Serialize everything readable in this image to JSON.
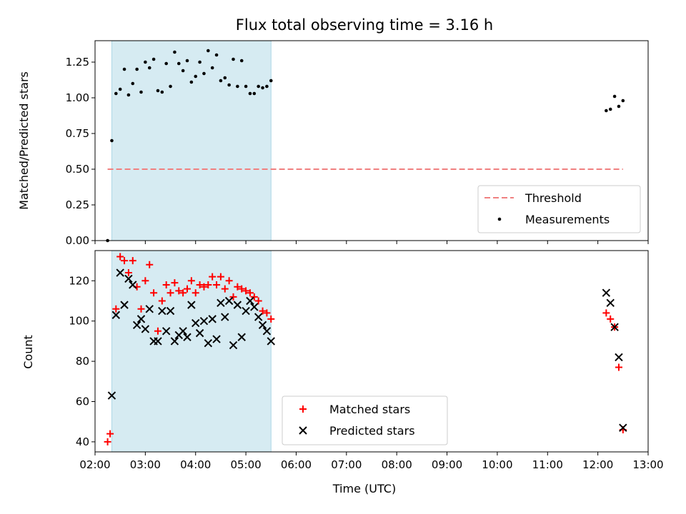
{
  "chart_data": [
    {
      "type": "scatter",
      "title": "Flux total observing time = 3.16 h",
      "xlabel": "",
      "ylabel": "Matched/Predicted stars",
      "ylim": [
        0,
        1.4
      ],
      "xlim": [
        "02:00",
        "13:00"
      ],
      "yticks": [
        "0.00",
        "0.25",
        "0.50",
        "0.75",
        "1.00",
        "1.25"
      ],
      "shaded_interval": [
        "02:20",
        "05:30"
      ],
      "shade_color": "#add8e6",
      "legend_position": "lower right",
      "threshold": {
        "name": "Threshold",
        "value": 0.5,
        "x": [
          "02:15",
          "12:30"
        ],
        "color": "#f08080",
        "style": "dashed"
      },
      "series": [
        {
          "name": "Measurements",
          "marker": "dot",
          "color": "#000000",
          "points": [
            [
              "02:15",
              0.0
            ],
            [
              "02:20",
              0.7
            ],
            [
              "02:25",
              1.03
            ],
            [
              "02:30",
              1.06
            ],
            [
              "02:35",
              1.2
            ],
            [
              "02:40",
              1.02
            ],
            [
              "02:45",
              1.1
            ],
            [
              "02:50",
              1.2
            ],
            [
              "02:55",
              1.04
            ],
            [
              "03:00",
              1.25
            ],
            [
              "03:05",
              1.21
            ],
            [
              "03:10",
              1.27
            ],
            [
              "03:15",
              1.05
            ],
            [
              "03:20",
              1.04
            ],
            [
              "03:25",
              1.24
            ],
            [
              "03:30",
              1.08
            ],
            [
              "03:35",
              1.32
            ],
            [
              "03:40",
              1.24
            ],
            [
              "03:45",
              1.19
            ],
            [
              "03:50",
              1.26
            ],
            [
              "03:55",
              1.11
            ],
            [
              "04:00",
              1.15
            ],
            [
              "04:05",
              1.25
            ],
            [
              "04:10",
              1.17
            ],
            [
              "04:15",
              1.33
            ],
            [
              "04:20",
              1.21
            ],
            [
              "04:25",
              1.3
            ],
            [
              "04:30",
              1.12
            ],
            [
              "04:35",
              1.14
            ],
            [
              "04:40",
              1.09
            ],
            [
              "04:45",
              1.27
            ],
            [
              "04:50",
              1.08
            ],
            [
              "04:55",
              1.26
            ],
            [
              "05:00",
              1.08
            ],
            [
              "05:05",
              1.03
            ],
            [
              "05:10",
              1.03
            ],
            [
              "05:15",
              1.08
            ],
            [
              "05:20",
              1.07
            ],
            [
              "05:25",
              1.08
            ],
            [
              "05:30",
              1.12
            ],
            [
              "12:10",
              0.91
            ],
            [
              "12:15",
              0.92
            ],
            [
              "12:20",
              1.01
            ],
            [
              "12:25",
              0.94
            ],
            [
              "12:30",
              0.98
            ]
          ]
        }
      ]
    },
    {
      "type": "scatter",
      "title": "",
      "xlabel": "Time (UTC)",
      "ylabel": "Count",
      "ylim": [
        35,
        135
      ],
      "xlim": [
        "02:00",
        "13:00"
      ],
      "yticks": [
        "40",
        "60",
        "80",
        "100",
        "120"
      ],
      "xticks": [
        "02:00",
        "03:00",
        "04:00",
        "05:00",
        "06:00",
        "07:00",
        "08:00",
        "09:00",
        "10:00",
        "11:00",
        "12:00",
        "13:00"
      ],
      "shaded_interval": [
        "02:20",
        "05:30"
      ],
      "shade_color": "#add8e6",
      "legend_position": "lower center",
      "series": [
        {
          "name": "Matched stars",
          "marker": "plus",
          "color": "#ff0000",
          "points": [
            [
              "02:15",
              40
            ],
            [
              "02:18",
              44
            ],
            [
              "02:25",
              106
            ],
            [
              "02:30",
              132
            ],
            [
              "02:35",
              130
            ],
            [
              "02:40",
              124
            ],
            [
              "02:45",
              130
            ],
            [
              "02:50",
              117
            ],
            [
              "02:55",
              106
            ],
            [
              "03:00",
              120
            ],
            [
              "03:05",
              128
            ],
            [
              "03:10",
              114
            ],
            [
              "03:15",
              95
            ],
            [
              "03:20",
              110
            ],
            [
              "03:25",
              118
            ],
            [
              "03:30",
              114
            ],
            [
              "03:35",
              119
            ],
            [
              "03:40",
              115
            ],
            [
              "03:45",
              114
            ],
            [
              "03:50",
              116
            ],
            [
              "03:55",
              120
            ],
            [
              "04:00",
              114
            ],
            [
              "04:05",
              118
            ],
            [
              "04:10",
              117
            ],
            [
              "04:15",
              118
            ],
            [
              "04:20",
              122
            ],
            [
              "04:25",
              118
            ],
            [
              "04:30",
              122
            ],
            [
              "04:35",
              116
            ],
            [
              "04:40",
              120
            ],
            [
              "04:45",
              112
            ],
            [
              "04:50",
              117
            ],
            [
              "04:55",
              116
            ],
            [
              "05:00",
              115
            ],
            [
              "05:05",
              114
            ],
            [
              "05:10",
              112
            ],
            [
              "05:15",
              110
            ],
            [
              "05:20",
              105
            ],
            [
              "05:25",
              104
            ],
            [
              "05:30",
              101
            ],
            [
              "12:10",
              104
            ],
            [
              "12:15",
              101
            ],
            [
              "12:20",
              97
            ],
            [
              "12:25",
              77
            ],
            [
              "12:30",
              46
            ]
          ]
        },
        {
          "name": "Predicted stars",
          "marker": "x",
          "color": "#000000",
          "points": [
            [
              "02:20",
              63
            ],
            [
              "02:25",
              103
            ],
            [
              "02:30",
              124
            ],
            [
              "02:35",
              108
            ],
            [
              "02:40",
              121
            ],
            [
              "02:45",
              118
            ],
            [
              "02:50",
              98
            ],
            [
              "02:55",
              101
            ],
            [
              "03:00",
              96
            ],
            [
              "03:05",
              106
            ],
            [
              "03:10",
              90
            ],
            [
              "03:15",
              90
            ],
            [
              "03:20",
              105
            ],
            [
              "03:25",
              95
            ],
            [
              "03:30",
              105
            ],
            [
              "03:35",
              90
            ],
            [
              "03:40",
              93
            ],
            [
              "03:45",
              95
            ],
            [
              "03:50",
              92
            ],
            [
              "03:55",
              108
            ],
            [
              "04:00",
              99
            ],
            [
              "04:05",
              94
            ],
            [
              "04:10",
              100
            ],
            [
              "04:15",
              89
            ],
            [
              "04:20",
              101
            ],
            [
              "04:25",
              91
            ],
            [
              "04:30",
              109
            ],
            [
              "04:35",
              102
            ],
            [
              "04:40",
              110
            ],
            [
              "04:45",
              88
            ],
            [
              "04:50",
              108
            ],
            [
              "04:55",
              92
            ],
            [
              "05:00",
              105
            ],
            [
              "05:05",
              110
            ],
            [
              "05:10",
              107
            ],
            [
              "05:15",
              102
            ],
            [
              "05:20",
              98
            ],
            [
              "05:25",
              95
            ],
            [
              "05:30",
              90
            ],
            [
              "12:10",
              114
            ],
            [
              "12:15",
              109
            ],
            [
              "12:20",
              97
            ],
            [
              "12:25",
              82
            ],
            [
              "12:30",
              47
            ]
          ]
        }
      ]
    }
  ]
}
